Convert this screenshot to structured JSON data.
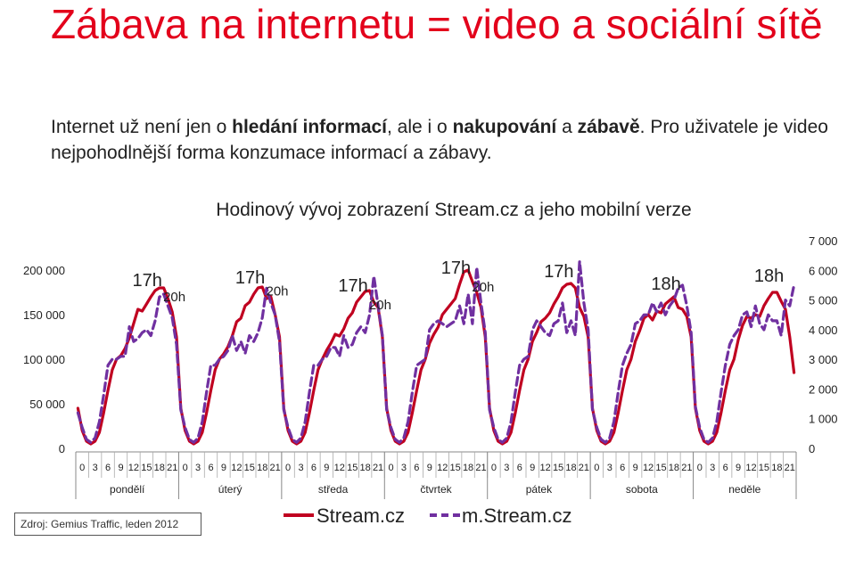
{
  "slide": {
    "title": "Zábava na internetu = video a sociální sítě",
    "subtitle": {
      "p1": "Internet už není jen o ",
      "b1": "hledání informací",
      "p2": ", ale i o ",
      "b2": "nakupování",
      "p3": " a ",
      "b3": "zábavě",
      "p4": ". Pro uživatele je video nejpohodlnější forma konzumace informací a zábavy."
    },
    "source": "Zdroj: Gemius Traffic, leden 2012"
  },
  "chart_data": {
    "type": "line",
    "title": "Hodinový vývoj zobrazení Stream.cz a jeho mobilní verze",
    "hour_tick_labels": [
      "0",
      "3",
      "6",
      "9",
      "12",
      "15",
      "18",
      "21"
    ],
    "days": [
      "pondělí",
      "úterý",
      "středa",
      "čtvrtek",
      "pátek",
      "sobota",
      "neděle"
    ],
    "y_left": {
      "min": 0,
      "max": 200000,
      "ticks": [
        0,
        50000,
        100000,
        150000,
        200000
      ],
      "tick_labels": [
        "0",
        "50 000",
        "100 000",
        "150 000",
        "200 000"
      ]
    },
    "y_right": {
      "min": 0,
      "max": 7000,
      "ticks": [
        0,
        1000,
        2000,
        3000,
        4000,
        5000,
        6000,
        7000
      ],
      "tick_labels": [
        "0",
        "1 000",
        "2 000",
        "3 000",
        "4 000",
        "5 000",
        "6 000",
        "7 000"
      ]
    },
    "grid": false,
    "legend_position": "bottom",
    "series": [
      {
        "name": "Stream.cz",
        "axis": "left",
        "color": "#c00020",
        "dash": "solid",
        "values": [
          [
            45000,
            20000,
            8000,
            5000,
            8000,
            18000,
            40000,
            65000,
            88000,
            100000,
            104000,
            112000,
            124000,
            140000,
            156000,
            154000,
            162000,
            170000,
            177000,
            180000,
            180000,
            168000,
            153000,
            125000
          ],
          [
            45000,
            20000,
            8000,
            5000,
            8000,
            18000,
            40000,
            65000,
            88000,
            100000,
            106000,
            114000,
            126000,
            142000,
            146000,
            160000,
            164000,
            173000,
            180000,
            181000,
            168000,
            170000,
            150000,
            125000
          ],
          [
            45000,
            20000,
            8000,
            5000,
            8000,
            18000,
            40000,
            65000,
            88000,
            100000,
            110000,
            118000,
            128000,
            126000,
            134000,
            146000,
            152000,
            164000,
            170000,
            176000,
            177000,
            164000,
            158000,
            125000
          ],
          [
            45000,
            20000,
            8000,
            5000,
            8000,
            18000,
            40000,
            65000,
            88000,
            100000,
            118000,
            128000,
            136000,
            150000,
            156000,
            162000,
            168000,
            184000,
            198000,
            200000,
            187000,
            175000,
            158000,
            125000
          ],
          [
            45000,
            20000,
            8000,
            5000,
            8000,
            18000,
            40000,
            65000,
            88000,
            100000,
            120000,
            130000,
            142000,
            146000,
            152000,
            162000,
            170000,
            180000,
            184000,
            185000,
            180000,
            158000,
            148000,
            125000
          ],
          [
            45000,
            20000,
            8000,
            5000,
            8000,
            18000,
            40000,
            65000,
            88000,
            100000,
            120000,
            132000,
            146000,
            150000,
            144000,
            154000,
            152000,
            162000,
            166000,
            170000,
            158000,
            156000,
            148000,
            125000
          ],
          [
            45000,
            20000,
            8000,
            5000,
            8000,
            18000,
            40000,
            65000,
            88000,
            100000,
            122000,
            138000,
            148000,
            146000,
            150000,
            148000,
            160000,
            168000,
            175000,
            175000,
            165000,
            156000,
            125000,
            85000
          ]
        ]
      },
      {
        "name": "m.Stream.cz",
        "axis": "right",
        "color": "#7030a0",
        "dash": "dashed",
        "values": [
          [
            1200,
            700,
            300,
            200,
            350,
            900,
            1800,
            2800,
            3000,
            3000,
            3100,
            3100,
            4100,
            3600,
            3700,
            3900,
            4000,
            3800,
            4300,
            5100,
            5200,
            4800,
            4400,
            3500
          ],
          [
            1300,
            700,
            300,
            200,
            350,
            900,
            1900,
            2800,
            2800,
            3000,
            3100,
            3300,
            3800,
            3300,
            3600,
            3200,
            3800,
            3600,
            3900,
            4400,
            5400,
            4900,
            4500,
            3600
          ],
          [
            1300,
            700,
            300,
            200,
            350,
            900,
            1900,
            2800,
            2800,
            3000,
            3100,
            3400,
            3400,
            3100,
            3800,
            3400,
            3500,
            3900,
            4100,
            3900,
            4500,
            5800,
            4800,
            3800
          ],
          [
            1300,
            700,
            300,
            200,
            350,
            900,
            1900,
            2800,
            2900,
            3000,
            4000,
            4200,
            4300,
            4200,
            4100,
            4200,
            4300,
            4800,
            4200,
            5200,
            4200,
            6100,
            4900,
            3900
          ],
          [
            1300,
            700,
            300,
            200,
            350,
            900,
            1900,
            2800,
            3000,
            3100,
            4000,
            4300,
            4100,
            3900,
            3800,
            4200,
            4300,
            4900,
            3900,
            4300,
            3800,
            6300,
            4900,
            4000
          ],
          [
            1300,
            700,
            300,
            200,
            350,
            900,
            1900,
            2800,
            3200,
            3500,
            4200,
            4300,
            4500,
            4500,
            4900,
            4600,
            4900,
            4500,
            4800,
            5000,
            5400,
            5500,
            4800,
            3900
          ],
          [
            1400,
            700,
            300,
            200,
            350,
            900,
            1900,
            2800,
            3500,
            3800,
            4000,
            4500,
            4600,
            4100,
            4800,
            4200,
            4000,
            4500,
            4300,
            4300,
            3800,
            5000,
            4800,
            5500
          ]
        ]
      }
    ],
    "annotations": [
      {
        "day": 0,
        "labels": [
          "17h",
          "20h"
        ]
      },
      {
        "day": 1,
        "labels": [
          "17h",
          "20h"
        ]
      },
      {
        "day": 2,
        "labels": [
          "17h",
          "20h"
        ]
      },
      {
        "day": 3,
        "labels": [
          "17h",
          "20h"
        ]
      },
      {
        "day": 4,
        "labels": [
          "17h"
        ]
      },
      {
        "day": 5,
        "labels": [
          "18h"
        ]
      },
      {
        "day": 6,
        "labels": [
          "18h"
        ]
      }
    ]
  }
}
